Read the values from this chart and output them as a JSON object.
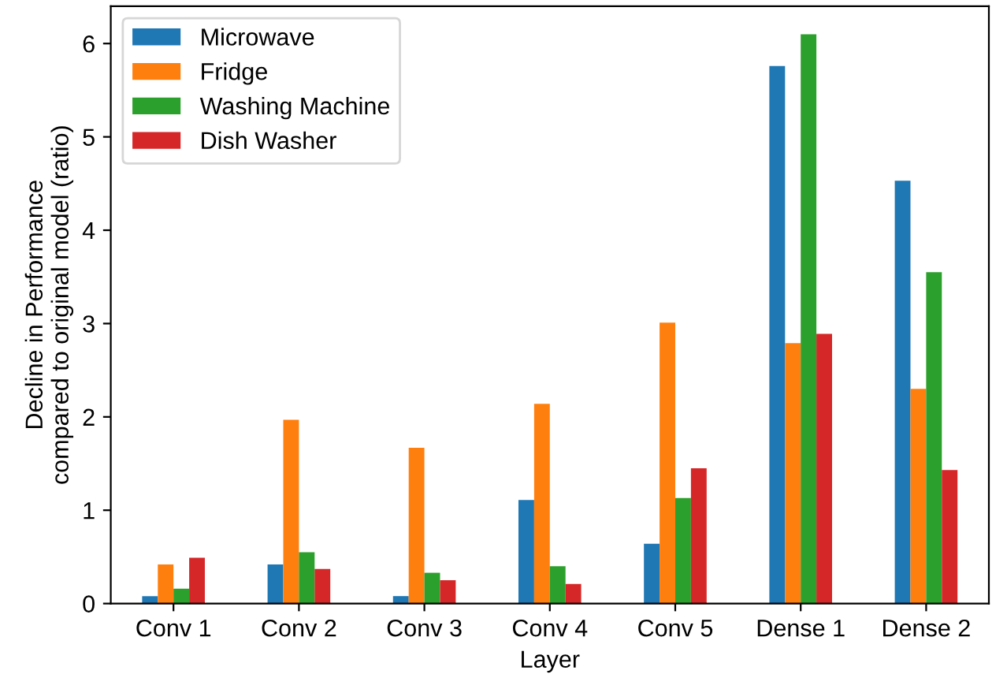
{
  "chart_data": {
    "type": "bar",
    "xlabel": "Layer",
    "ylabel": "Decline in Performance\ncompared to original model (ratio)",
    "categories": [
      "Conv 1",
      "Conv 2",
      "Conv 3",
      "Conv 4",
      "Conv 5",
      "Dense 1",
      "Dense 2"
    ],
    "series": [
      {
        "name": "Microwave",
        "color": "#1f77b4",
        "values": [
          0.08,
          0.42,
          0.08,
          1.11,
          0.64,
          5.76,
          4.53
        ]
      },
      {
        "name": "Fridge",
        "color": "#ff7f0e",
        "values": [
          0.42,
          1.97,
          1.67,
          2.14,
          3.01,
          2.79,
          2.3
        ]
      },
      {
        "name": "Washing Machine",
        "color": "#2ca02c",
        "values": [
          0.16,
          0.55,
          0.33,
          0.4,
          1.13,
          6.1,
          3.55
        ]
      },
      {
        "name": "Dish Washer",
        "color": "#d62728",
        "values": [
          0.49,
          0.37,
          0.25,
          0.21,
          1.45,
          2.89,
          1.43
        ]
      }
    ],
    "ylim": [
      0,
      6.4
    ],
    "yticks": [
      0,
      1,
      2,
      3,
      4,
      5,
      6
    ],
    "grid": false,
    "legend": "top left"
  }
}
